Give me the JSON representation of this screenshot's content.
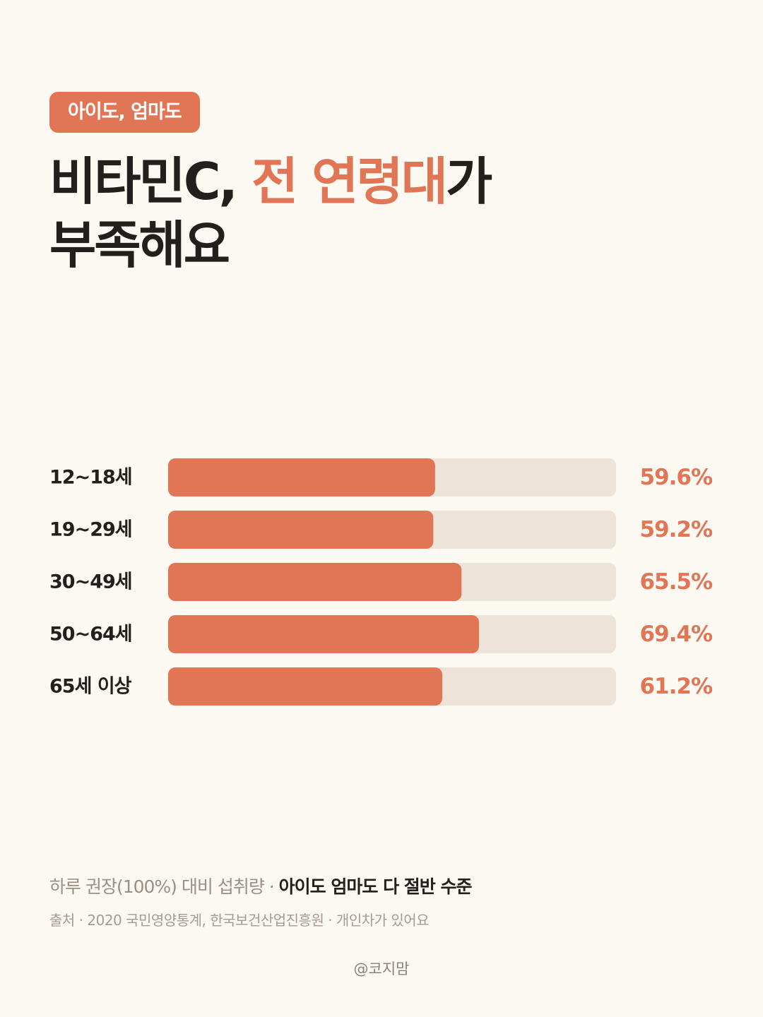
{
  "badge": "아이도, 엄마도",
  "title": {
    "line1_pre": "비타민C, ",
    "line1_highlight": "전 연령대",
    "line1_post": "가",
    "line2": "부족해요"
  },
  "colors": {
    "accent": "#e07656",
    "track": "#ede3d8",
    "background": "#fcf8f2",
    "text": "#231f1c"
  },
  "chart_data": {
    "type": "bar",
    "orientation": "horizontal",
    "categories": [
      "12~18세",
      "19~29세",
      "30~49세",
      "50~64세",
      "65세 이상"
    ],
    "values": [
      59.6,
      59.2,
      65.5,
      69.4,
      61.2
    ],
    "value_labels": [
      "59.6%",
      "59.2%",
      "65.5%",
      "69.4%",
      "61.2%"
    ],
    "xlim": [
      0,
      100
    ],
    "grid": false,
    "legend": "none"
  },
  "footer": {
    "note_pre": "하루 권장(100%) 대비 섭취량 · ",
    "note_strong": "아이도 엄마도 다 절반 수준",
    "source": "출처 · 2020 국민영양통계, 한국보건산업진흥원 · 개인차가 있어요",
    "handle": "@코지맘"
  }
}
